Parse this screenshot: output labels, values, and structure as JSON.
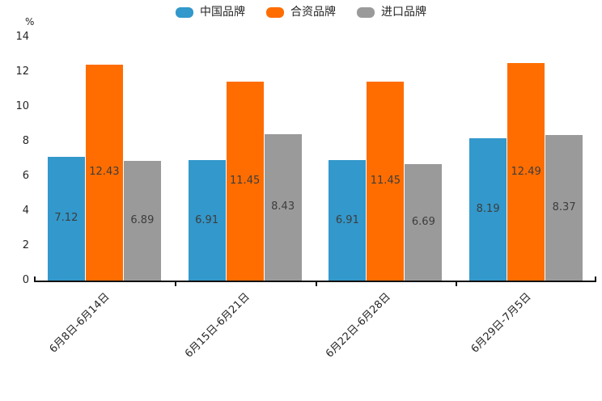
{
  "chart_data": {
    "type": "bar",
    "title": "",
    "categories": [
      "6月8日-6月14日",
      "6月15日-6月21日",
      "6月22日-6月28日",
      "6月29日-7月5日"
    ],
    "series": [
      {
        "name": "中国品牌",
        "color": "#3398cb",
        "values": [
          7.12,
          6.91,
          6.91,
          8.19
        ]
      },
      {
        "name": "合资品牌",
        "color": "#ff6d00",
        "values": [
          12.43,
          11.45,
          11.45,
          12.49
        ]
      },
      {
        "name": "进口品牌",
        "color": "#9a9a9a",
        "values": [
          6.89,
          8.43,
          6.69,
          8.37
        ]
      }
    ],
    "xlabel": "",
    "ylabel": "%",
    "ylim": [
      0,
      14
    ],
    "ytick_step": 2,
    "grid": false,
    "legend_position": "top-center",
    "value_labels": "centered-inside",
    "axis_color": "#111111",
    "text_color": "#262626"
  }
}
